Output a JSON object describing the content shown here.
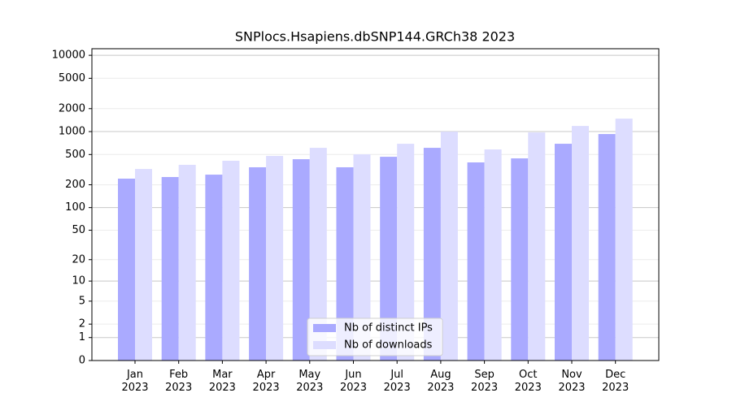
{
  "chart_data": {
    "type": "bar",
    "title": "SNPlocs.Hsapiens.dbSNP144.GRCh38 2023",
    "categories": [
      "Jan 2023",
      "Feb 2023",
      "Mar 2023",
      "Apr 2023",
      "May 2023",
      "Jun 2023",
      "Jul 2023",
      "Aug 2023",
      "Sep 2023",
      "Oct 2023",
      "Nov 2023",
      "Dec 2023"
    ],
    "series": [
      {
        "name": "Nb of distinct IPs",
        "color": "#aaaaff",
        "values": [
          241,
          253,
          272,
          340,
          434,
          340,
          467,
          612,
          394,
          445,
          692,
          929
        ]
      },
      {
        "name": "Nb of downloads",
        "color": "#ddddff",
        "values": [
          323,
          366,
          414,
          479,
          612,
          503,
          692,
          999,
          583,
          975,
          1186,
          1479
        ]
      }
    ],
    "y_scale": "log1p",
    "ylim": [
      0,
      12200
    ],
    "yticks": [
      0,
      1,
      2,
      5,
      10,
      20,
      50,
      100,
      200,
      500,
      1000,
      2000,
      5000,
      10000
    ],
    "grid": true,
    "legend_position": "lower center"
  }
}
